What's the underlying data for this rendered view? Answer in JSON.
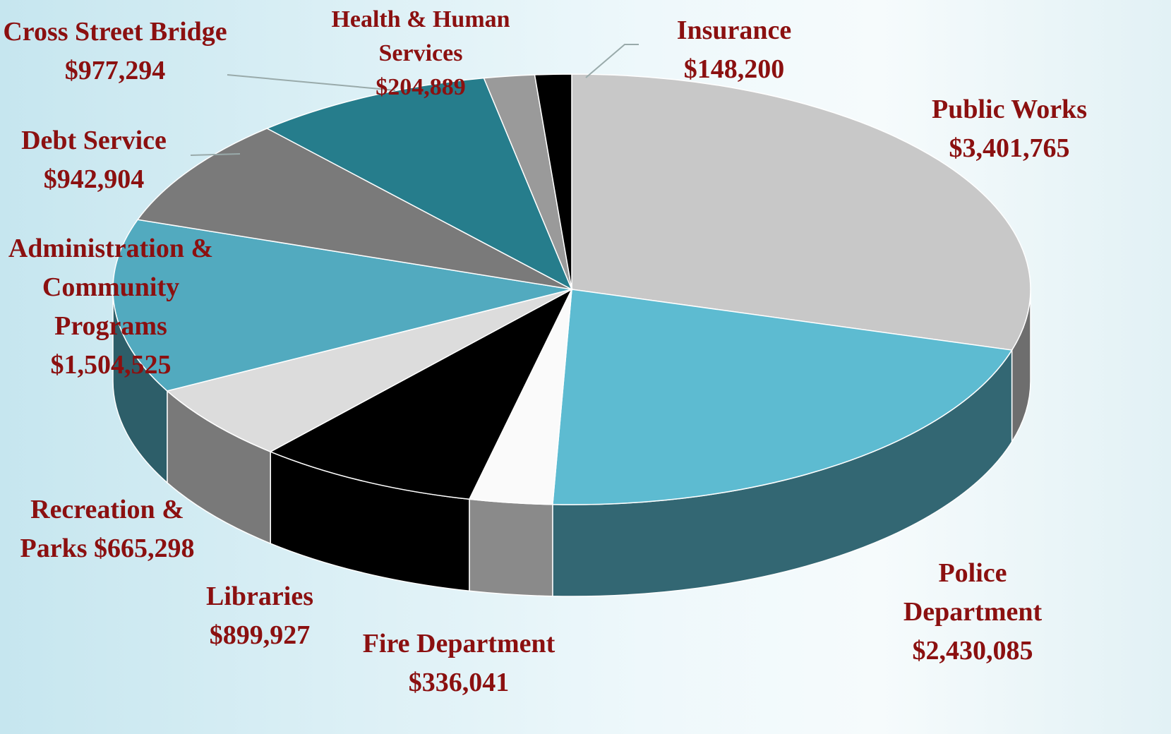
{
  "chart_data": {
    "type": "pie",
    "categories": [
      "Public Works",
      "Police Department",
      "Fire Department",
      "Libraries",
      "Recreation & Parks",
      "Administration & Community Programs",
      "Debt Service",
      "Cross Street Bridge",
      "Health & Human Services",
      "Insurance"
    ],
    "values": [
      3401765,
      2430085,
      336041,
      899927,
      665298,
      1504525,
      942904,
      977294,
      204889,
      148200
    ],
    "value_labels": [
      "$3,401,765",
      "$2,430,085",
      "$336,041",
      "$899,927",
      "$665,298",
      "$1,504,525",
      "$942,904",
      "$977,294",
      "$204,889",
      "$148,200"
    ],
    "colors": [
      "#c8c8c8",
      "#5dbbd1",
      "#fafafa",
      "#000000",
      "#dcdcdc",
      "#52aabf",
      "#7a7a7a",
      "#267d8c",
      "#9a9a9a",
      "#000000"
    ]
  }
}
